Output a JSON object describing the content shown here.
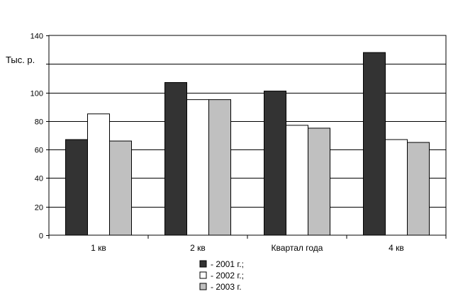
{
  "chart_data": {
    "type": "bar",
    "title": "",
    "ylabel": "Тыс. р.",
    "xlabel": "",
    "categories": [
      "1 кв",
      "2 кв",
      "Квартал года",
      "4 кв"
    ],
    "series": [
      {
        "name": "- 2001 г.;",
        "values": [
          67,
          107,
          101,
          128
        ],
        "color": "#333333"
      },
      {
        "name": "- 2002 г.;",
        "values": [
          85,
          95,
          77,
          67
        ],
        "color": "#ffffff"
      },
      {
        "name": "- 2003 г.",
        "values": [
          66,
          95,
          75,
          65
        ],
        "color": "#c0c0c0"
      }
    ],
    "ylim": [
      0,
      140
    ],
    "y_ticks": [
      "0",
      "20",
      "40",
      "60",
      "80",
      "100",
      "",
      "140"
    ],
    "grid": true,
    "legend_position": "bottom"
  }
}
